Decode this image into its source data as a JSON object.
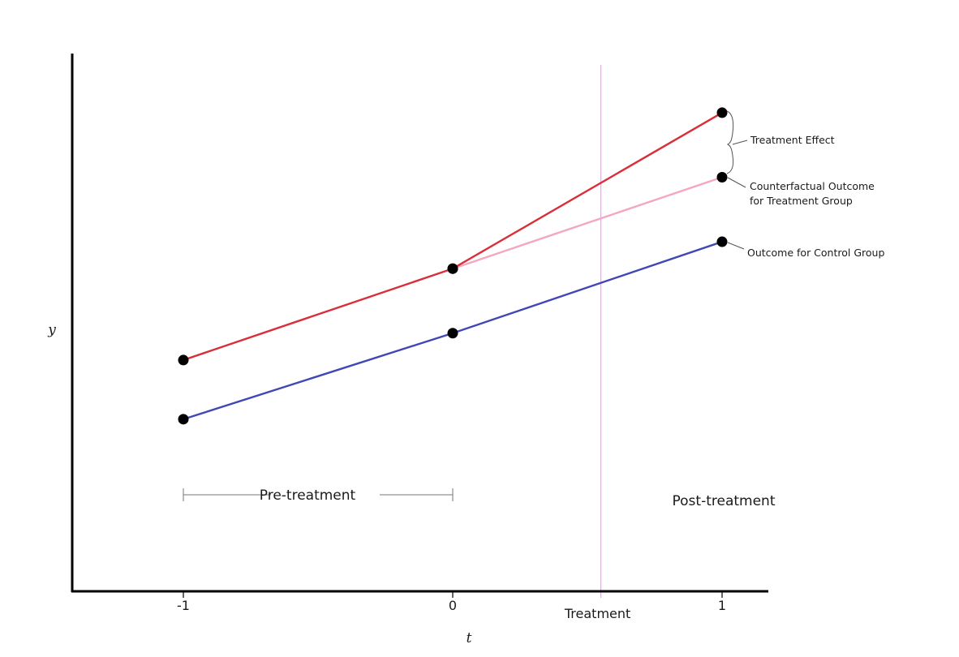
{
  "chart_data": {
    "type": "line",
    "title": "",
    "xlabel": "t",
    "ylabel": "y",
    "x_ticks": [
      {
        "value": -1,
        "label": "-1"
      },
      {
        "value": 0,
        "label": "0"
      },
      {
        "value": 1,
        "label": "1"
      }
    ],
    "xlim": [
      -1.4,
      1.15
    ],
    "ylim": [
      0,
      10
    ],
    "treatment": {
      "x": 0.55,
      "label": "Treatment",
      "color": "#d9b3d9"
    },
    "regions": {
      "pre": {
        "label": "Pre-treatment",
        "from": -1,
        "to": 0
      },
      "post": {
        "label": "Post-treatment"
      }
    },
    "series": [
      {
        "key": "treatment_group",
        "x": [
          -1,
          0,
          1
        ],
        "values": [
          4.3,
          6.0,
          8.9
        ],
        "color": "#d92f3a"
      },
      {
        "key": "control_group",
        "x": [
          -1,
          0,
          1
        ],
        "values": [
          3.2,
          4.8,
          6.5
        ],
        "color": "#4147b5"
      },
      {
        "key": "counterfactual",
        "x": [
          0,
          1
        ],
        "values": [
          6.0,
          7.7
        ],
        "color": "#f4a6c4"
      }
    ],
    "annotations": {
      "treatment_effect": "Treatment Effect",
      "counterfactual_line1": "Counterfactual Outcome",
      "counterfactual_line2": "for Treatment Group",
      "control": "Outcome for Control Group"
    },
    "grid": false,
    "legend": "none"
  }
}
